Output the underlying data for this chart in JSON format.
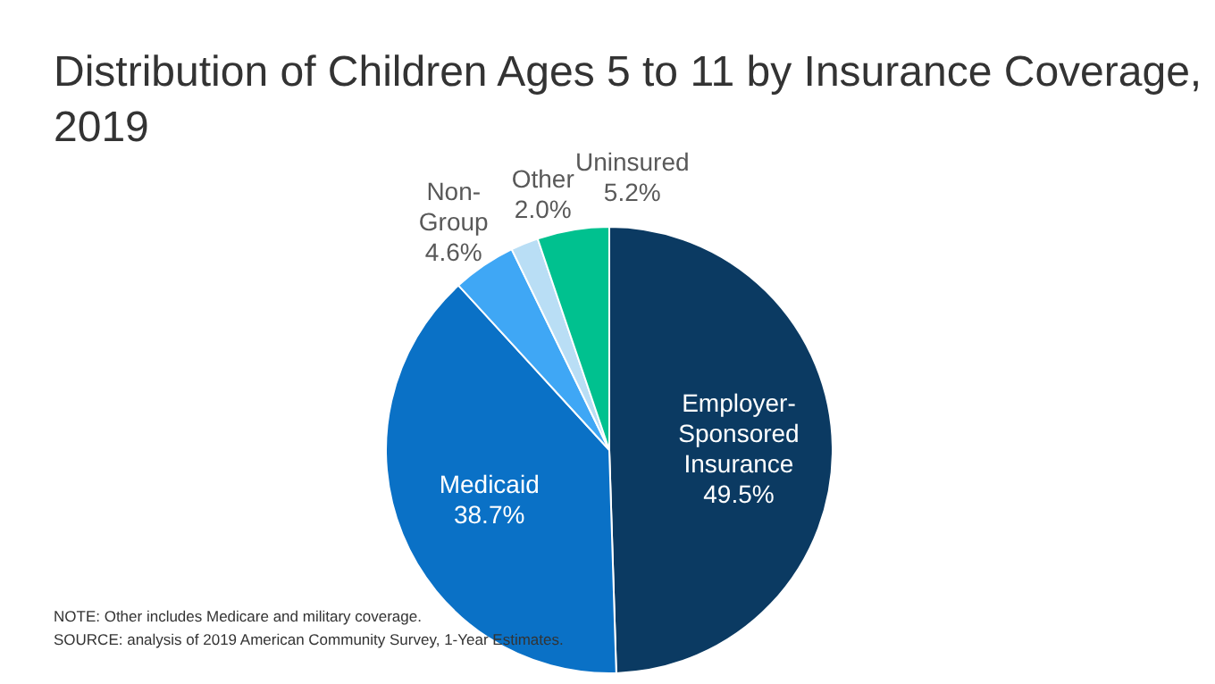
{
  "chart_data": {
    "type": "pie",
    "title": "Distribution of Children Ages 5 to 11 by Insurance Coverage, 2019",
    "categories": [
      "Employer-Sponsored Insurance",
      "Medicaid",
      "Non-Group",
      "Other",
      "Uninsured"
    ],
    "values": [
      49.5,
      38.7,
      4.6,
      2.0,
      5.2
    ],
    "colors": [
      "#0b3a62",
      "#0a71c6",
      "#3fa7f5",
      "#b9def5",
      "#00c18f"
    ],
    "value_labels": [
      "49.5%",
      "38.7%",
      "4.6%",
      "2.0%",
      "5.2%"
    ],
    "annotations": [
      "NOTE: Other includes Medicare and military coverage.",
      "SOURCE: analysis of 2019 American Community Survey, 1-Year Estimates."
    ]
  }
}
